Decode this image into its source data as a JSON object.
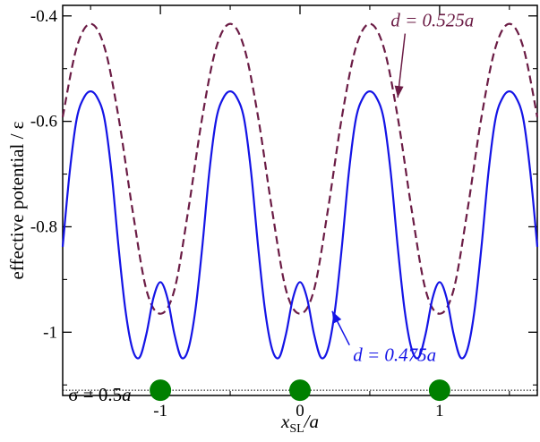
{
  "chart_data": {
    "type": "line",
    "xlabel_main": "x",
    "xlabel_sub": "SL",
    "xlabel_suffix": "/a",
    "ylabel": "effective potential / ε",
    "xlim": [
      -1.7,
      1.7
    ],
    "ylim": [
      -1.12,
      -0.38
    ],
    "x_ticks": [
      -1,
      0,
      1
    ],
    "x_tick_labels": [
      "-1",
      "0",
      "1"
    ],
    "y_ticks": [
      -1.0,
      -0.8,
      -0.6,
      -0.4
    ],
    "y_tick_labels": [
      "-1",
      "-0.8",
      "-0.6",
      "-0.4"
    ],
    "series": [
      {
        "name": "d = 0.525a",
        "color": "#6b1c45",
        "style": "dashed",
        "x": [
          -1.7,
          -1.6,
          -1.5,
          -1.4,
          -1.3,
          -1.2,
          -1.1,
          -1.0,
          -0.9,
          -0.8,
          -0.7,
          -0.6,
          -0.5,
          -0.4,
          -0.3,
          -0.2,
          -0.1,
          0.0,
          0.1,
          0.2,
          0.3,
          0.4,
          0.5,
          0.6,
          0.7,
          0.8,
          0.9,
          1.0,
          1.1,
          1.2,
          1.3,
          1.4,
          1.5,
          1.6,
          1.7
        ],
        "y": [
          -0.592,
          -0.46,
          -0.415,
          -0.46,
          -0.592,
          -0.768,
          -0.92,
          -0.965,
          -0.92,
          -0.768,
          -0.592,
          -0.46,
          -0.415,
          -0.46,
          -0.592,
          -0.768,
          -0.92,
          -0.965,
          -0.92,
          -0.768,
          -0.592,
          -0.46,
          -0.415,
          -0.46,
          -0.592,
          -0.768,
          -0.92,
          -0.965,
          -0.92,
          -0.768,
          -0.592,
          -0.46,
          -0.415,
          -0.46,
          -0.592
        ]
      },
      {
        "name": "d = 0.475a",
        "color": "#1414e6",
        "style": "solid",
        "x": [
          -1.7,
          -1.65,
          -1.6,
          -1.55,
          -1.5,
          -1.45,
          -1.4,
          -1.35,
          -1.3,
          -1.25,
          -1.2,
          -1.15,
          -1.1,
          -1.05,
          -1.0,
          -0.95,
          -0.9,
          -0.85,
          -0.8,
          -0.75,
          -0.7,
          -0.65,
          -0.6,
          -0.55,
          -0.5,
          -0.45,
          -0.4,
          -0.35,
          -0.3,
          -0.25,
          -0.2,
          -0.15,
          -0.1,
          -0.05,
          0.0,
          0.05,
          0.1,
          0.15,
          0.2,
          0.25,
          0.3,
          0.35,
          0.4,
          0.45,
          0.5,
          0.55,
          0.6,
          0.65,
          0.7,
          0.75,
          0.8,
          0.85,
          0.9,
          0.95,
          1.0,
          1.05,
          1.1,
          1.15,
          1.2,
          1.25,
          1.3,
          1.35,
          1.4,
          1.45,
          1.5,
          1.55,
          1.6,
          1.65,
          1.7
        ],
        "y": [
          -0.838,
          -0.697,
          -0.596,
          -0.556,
          -0.543,
          -0.556,
          -0.596,
          -0.697,
          -0.838,
          -0.959,
          -1.032,
          -1.048,
          -1.003,
          -0.935,
          -0.905,
          -0.935,
          -1.003,
          -1.048,
          -1.032,
          -0.959,
          -0.838,
          -0.697,
          -0.596,
          -0.556,
          -0.543,
          -0.556,
          -0.596,
          -0.697,
          -0.838,
          -0.959,
          -1.032,
          -1.048,
          -1.003,
          -0.935,
          -0.905,
          -0.935,
          -1.003,
          -1.048,
          -1.032,
          -0.959,
          -0.838,
          -0.697,
          -0.596,
          -0.556,
          -0.543,
          -0.556,
          -0.596,
          -0.697,
          -0.838,
          -0.959,
          -1.032,
          -1.048,
          -1.003,
          -0.935,
          -0.905,
          -0.935,
          -1.003,
          -1.048,
          -1.032,
          -0.959,
          -0.838,
          -0.697,
          -0.596,
          -0.556,
          -0.543,
          -0.556,
          -0.596,
          -0.697,
          -0.838
        ]
      }
    ],
    "reference_line": {
      "y": -1.11,
      "style": "dotted",
      "color": "#000000"
    },
    "markers": {
      "x": [
        -1,
        0,
        1
      ],
      "y": -1.11,
      "color": "#008000",
      "shape": "circle"
    },
    "annotations": [
      {
        "id": "dashed",
        "prefix": "d = 0.525",
        "suffix": "a",
        "color": "#6b1c45",
        "x": 0.65,
        "y": -0.42,
        "arrow_to_x": 0.7,
        "arrow_to_y": -0.555
      },
      {
        "id": "solid",
        "prefix": "d = 0.475",
        "suffix": "a",
        "color": "#1414e6",
        "x": 0.38,
        "y": -1.055,
        "arrow_to_x": 0.23,
        "arrow_to_y": -0.96
      },
      {
        "id": "sigma",
        "prefix": "σ = 0.5",
        "suffix": "a",
        "color": "#000000",
        "x": -1.66,
        "y": -1.13
      }
    ]
  }
}
